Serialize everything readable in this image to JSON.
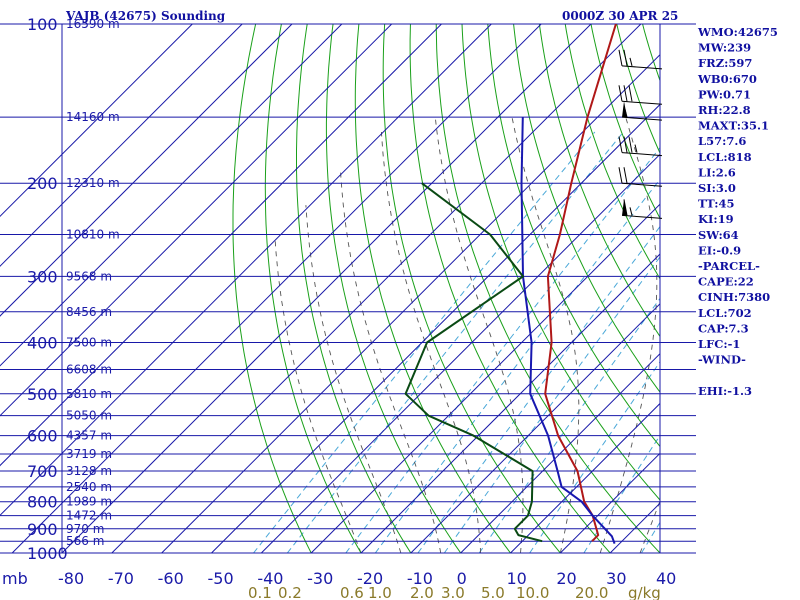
{
  "chart_data": {
    "type": "line",
    "chart_kind": "skew-T log-P sounding",
    "title": "VAJB (42675) Sounding",
    "time_label": "0000Z 30 APR 25",
    "pressure_label": "mb",
    "pressure_ticks": [
      100,
      200,
      300,
      400,
      500,
      600,
      700,
      800,
      900,
      1000
    ],
    "pressure_range": [
      100,
      1000
    ],
    "temperature_ticks": [
      -80,
      -70,
      -60,
      -50,
      -40,
      -30,
      -20,
      -10,
      0,
      10,
      20,
      30,
      40
    ],
    "temperature_range_at_1000mb": [
      -80,
      40
    ],
    "mixing_ratio_labels": [
      "0.1",
      "0.2",
      "0.6",
      "1.0",
      "2.0",
      "3.0",
      "5.0",
      "10.0",
      "20.0"
    ],
    "mixing_ratio_unit": "g/kg",
    "height_labels": [
      {
        "p": 100,
        "label": "16590 m"
      },
      {
        "p": 150,
        "label": "14160 m"
      },
      {
        "p": 200,
        "label": "12310 m"
      },
      {
        "p": 250,
        "label": "10810 m"
      },
      {
        "p": 300,
        "label": "9568 m"
      },
      {
        "p": 350,
        "label": "8456 m"
      },
      {
        "p": 400,
        "label": "7500 m"
      },
      {
        "p": 450,
        "label": "6608 m"
      },
      {
        "p": 500,
        "label": "5810 m"
      },
      {
        "p": 550,
        "label": "5050 m"
      },
      {
        "p": 600,
        "label": "4357 m"
      },
      {
        "p": 650,
        "label": "3719 m"
      },
      {
        "p": 700,
        "label": "3128 m"
      },
      {
        "p": 750,
        "label": "2540 m"
      },
      {
        "p": 800,
        "label": "1989 m"
      },
      {
        "p": 850,
        "label": "1472 m"
      },
      {
        "p": 900,
        "label": "970 m"
      },
      {
        "p": 950,
        "label": "566 m"
      }
    ],
    "series": [
      {
        "key": "temperature",
        "color": "#b01818",
        "points": [
          [
            950,
            24
          ],
          [
            925,
            24
          ],
          [
            850,
            19
          ],
          [
            800,
            14.5
          ],
          [
            700,
            7
          ],
          [
            600,
            -4
          ],
          [
            500,
            -15
          ],
          [
            400,
            -24
          ],
          [
            300,
            -38
          ],
          [
            250,
            -44
          ],
          [
            200,
            -52
          ],
          [
            150,
            -62
          ],
          [
            100,
            -75
          ]
        ]
      },
      {
        "key": "parcel",
        "color": "#1818b0",
        "points": [
          [
            960,
            29
          ],
          [
            930,
            27
          ],
          [
            850,
            19
          ],
          [
            800,
            14
          ],
          [
            750,
            7
          ],
          [
            700,
            3
          ],
          [
            600,
            -6
          ],
          [
            500,
            -18
          ],
          [
            400,
            -28
          ],
          [
            300,
            -43
          ],
          [
            200,
            -62
          ],
          [
            150,
            -75
          ]
        ]
      },
      {
        "key": "dewpoint",
        "color": "#0a4a14",
        "points": [
          [
            950,
            14
          ],
          [
            925,
            8
          ],
          [
            900,
            6
          ],
          [
            850,
            6
          ],
          [
            800,
            4
          ],
          [
            700,
            -2
          ],
          [
            600,
            -21
          ],
          [
            550,
            -34
          ],
          [
            500,
            -43
          ],
          [
            400,
            -49
          ],
          [
            300,
            -43
          ],
          [
            250,
            -58
          ],
          [
            200,
            -82
          ]
        ]
      }
    ],
    "wind_barbs": [
      {
        "p": 120,
        "speed_kt": 25
      },
      {
        "p": 140,
        "speed_kt": 30
      },
      {
        "p": 150,
        "speed_kt": 55
      },
      {
        "p": 175,
        "speed_kt": 35
      },
      {
        "p": 200,
        "speed_kt": 20
      },
      {
        "p": 230,
        "speed_kt": 65
      }
    ],
    "grid": true,
    "colors": {
      "isobar": "#1818a8",
      "dry_adiabat": "#1aa01a",
      "moist_adiabat": "#555555",
      "mixing_ratio": "#4aa8d8"
    }
  },
  "indices": [
    "WMO:42675",
    "MW:239",
    "FRZ:597",
    "WB0:670",
    "PW:0.71",
    "RH:22.8",
    "MAXT:35.1",
    "L57:7.6",
    "LCL:818",
    "LI:2.6",
    "SI:3.0",
    "TT:45",
    "KI:19",
    "SW:64",
    "EI:-0.9",
    "-PARCEL-",
    "CAPE:22",
    "CINH:7380",
    "LCL:702",
    "CAP:7.3",
    "LFC:-1",
    "-WIND-",
    "",
    "EHI:-1.3"
  ]
}
